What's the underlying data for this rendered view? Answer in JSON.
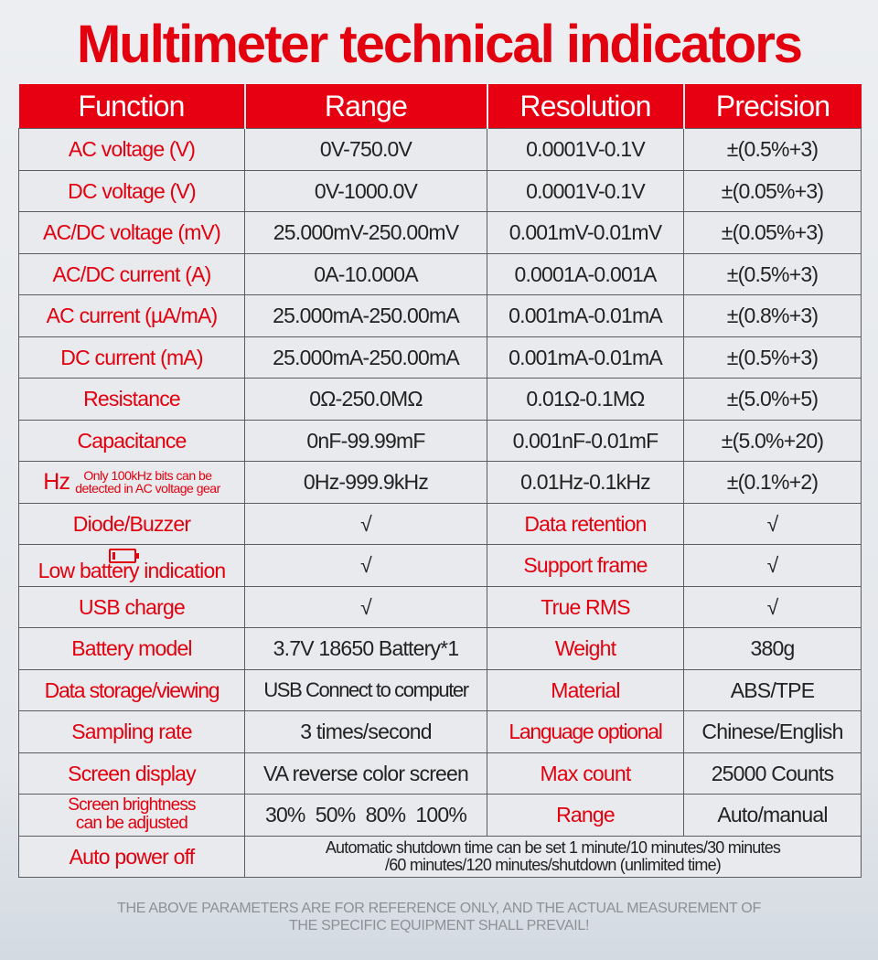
{
  "title": "Multimeter technical indicators",
  "headers": [
    "Function",
    "Range",
    "Resolution",
    "Precision"
  ],
  "spec_rows": [
    [
      "AC voltage (V)",
      "0V-750.0V",
      "0.0001V-0.1V",
      "±(0.5%+3)"
    ],
    [
      "DC voltage (V)",
      "0V-1000.0V",
      "0.0001V-0.1V",
      "±(0.05%+3)"
    ],
    [
      "AC/DC voltage (mV)",
      "25.000mV-250.00mV",
      "0.001mV-0.01mV",
      "±(0.05%+3)"
    ],
    [
      "AC/DC current (A)",
      "0A-10.000A",
      "0.0001A-0.001A",
      "±(0.5%+3)"
    ],
    [
      "AC current (µA/mA)",
      "25.000mA-250.00mA",
      "0.001mA-0.01mA",
      "±(0.8%+3)"
    ],
    [
      "DC current (mA)",
      "25.000mA-250.00mA",
      "0.001mA-0.01mA",
      "±(0.5%+3)"
    ],
    [
      "Resistance",
      "0Ω-250.0MΩ",
      "0.01Ω-0.1MΩ",
      "±(5.0%+5)"
    ],
    [
      "Capacitance",
      "0nF-99.99mF",
      "0.001nF-0.01mF",
      "±(5.0%+20)"
    ]
  ],
  "hz_row": {
    "label": "Hz",
    "note_line1": "Only 100kHz bits can be",
    "note_line2": "detected in AC voltage gear",
    "range": "0Hz-999.9kHz",
    "resolution": "0.01Hz-0.1kHz",
    "precision": "±(0.1%+2)"
  },
  "feature_rows": [
    [
      "Diode/Buzzer",
      "√",
      "Data retention",
      "√"
    ],
    [
      "Low battery indication",
      "√",
      "Support frame",
      "√"
    ],
    [
      "USB charge",
      "√",
      "True RMS",
      "√"
    ],
    [
      "Battery model",
      "3.7V 18650 Battery*1",
      "Weight",
      "380g"
    ],
    [
      "Data storage/viewing",
      "USB Connect to computer",
      "Material",
      "ABS/TPE"
    ],
    [
      "Sampling rate",
      "3 times/second",
      "Language optional",
      "Chinese/English"
    ],
    [
      "Screen display",
      "VA reverse color screen",
      "Max count",
      "25000 Counts"
    ]
  ],
  "brightness_row": {
    "label_line1": "Screen brightness",
    "label_line2": "can be adjusted",
    "value": "30%  50%  80%  100%",
    "label2": "Range",
    "value2": "Auto/manual"
  },
  "power_row": {
    "label": "Auto power off",
    "line1": "Automatic shutdown time can be set 1 minute/10 minutes/30 minutes",
    "line2": "/60 minutes/120 minutes/shutdown (unlimited time)"
  },
  "footer": {
    "line1": "THE ABOVE PARAMETERS ARE FOR REFERENCE ONLY, AND THE ACTUAL MEASUREMENT OF",
    "line2": "THE SPECIFIC EQUIPMENT SHALL PREVAIL!"
  },
  "icons": {
    "low_battery": "battery-low-icon"
  },
  "colors": {
    "accent_red": "#e60012",
    "cell_bg": "#e9eaed",
    "border": "#5a5c60"
  }
}
